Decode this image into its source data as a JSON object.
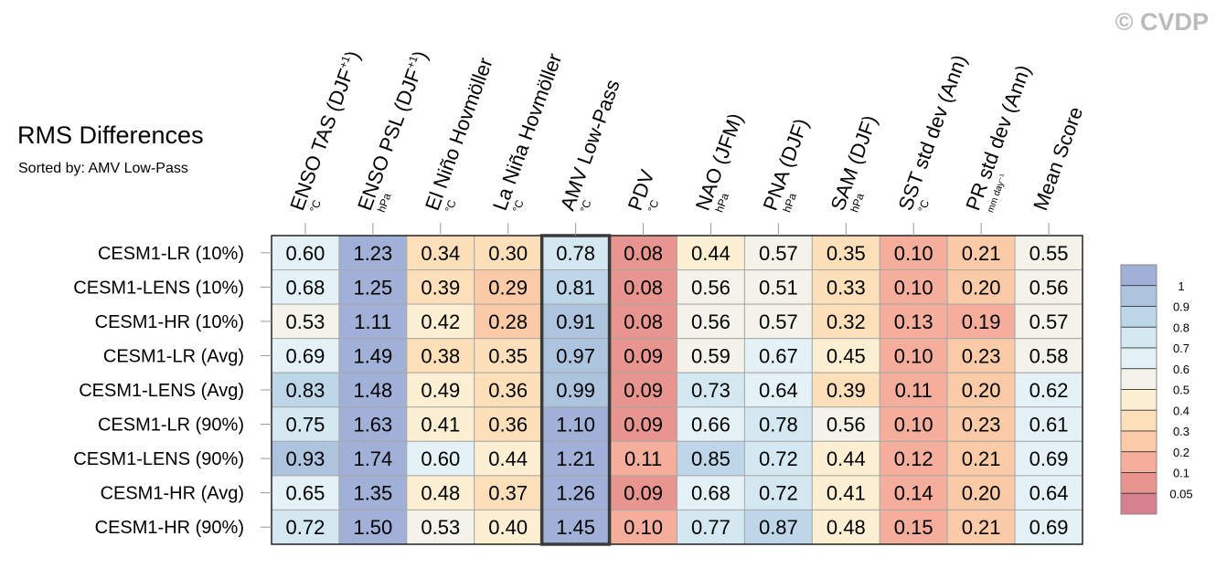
{
  "watermark": "© CVDP",
  "chart_data": {
    "type": "heatmap",
    "title": "RMS Differences",
    "subtitle": "Sorted by: AMV Low-Pass",
    "highlighted_column": "AMV Low-Pass",
    "columns": [
      {
        "name": "ENSO TAS (DJF",
        "sup": "+1",
        "close": ")",
        "unit": "°C"
      },
      {
        "name": "ENSO PSL (DJF",
        "sup": "+1",
        "close": ")",
        "unit": "hPa"
      },
      {
        "name": "El Niño Hovmöller",
        "sup": "",
        "close": "",
        "unit": "°C"
      },
      {
        "name": "La Niña Hovmöller",
        "sup": "",
        "close": "",
        "unit": "°C"
      },
      {
        "name": "AMV Low-Pass",
        "sup": "",
        "close": "",
        "unit": "°C"
      },
      {
        "name": "PDV",
        "sup": "",
        "close": "",
        "unit": "°C"
      },
      {
        "name": "NAO (JFM)",
        "sup": "",
        "close": "",
        "unit": "hPa"
      },
      {
        "name": "PNA (DJF)",
        "sup": "",
        "close": "",
        "unit": "hPa"
      },
      {
        "name": "SAM (DJF)",
        "sup": "",
        "close": "",
        "unit": "hPa"
      },
      {
        "name": "SST std dev (Ann)",
        "sup": "",
        "close": "",
        "unit": "°C"
      },
      {
        "name": "PR std dev (Ann)",
        "sup": "",
        "close": "",
        "unit": "mm day⁻¹"
      },
      {
        "name": "Mean Score",
        "sup": "",
        "close": "",
        "unit": ""
      }
    ],
    "rows": [
      {
        "name": "CESM1-LR (10%)",
        "values": [
          "0.60",
          "1.23",
          "0.34",
          "0.30",
          "0.78",
          "0.08",
          "0.44",
          "0.57",
          "0.35",
          "0.10",
          "0.21",
          "0.55"
        ]
      },
      {
        "name": "CESM1-LENS (10%)",
        "values": [
          "0.68",
          "1.25",
          "0.39",
          "0.29",
          "0.81",
          "0.08",
          "0.56",
          "0.51",
          "0.33",
          "0.10",
          "0.20",
          "0.56"
        ]
      },
      {
        "name": "CESM1-HR (10%)",
        "values": [
          "0.53",
          "1.11",
          "0.42",
          "0.28",
          "0.91",
          "0.08",
          "0.56",
          "0.57",
          "0.32",
          "0.13",
          "0.19",
          "0.57"
        ]
      },
      {
        "name": "CESM1-LR (Avg)",
        "values": [
          "0.69",
          "1.49",
          "0.38",
          "0.35",
          "0.97",
          "0.09",
          "0.59",
          "0.67",
          "0.45",
          "0.10",
          "0.23",
          "0.58"
        ]
      },
      {
        "name": "CESM1-LENS (Avg)",
        "values": [
          "0.83",
          "1.48",
          "0.49",
          "0.36",
          "0.99",
          "0.09",
          "0.73",
          "0.64",
          "0.39",
          "0.11",
          "0.20",
          "0.62"
        ]
      },
      {
        "name": "CESM1-LR (90%)",
        "values": [
          "0.75",
          "1.63",
          "0.41",
          "0.36",
          "1.10",
          "0.09",
          "0.66",
          "0.78",
          "0.56",
          "0.10",
          "0.23",
          "0.61"
        ]
      },
      {
        "name": "CESM1-LENS (90%)",
        "values": [
          "0.93",
          "1.74",
          "0.60",
          "0.44",
          "1.21",
          "0.11",
          "0.85",
          "0.72",
          "0.44",
          "0.12",
          "0.21",
          "0.69"
        ]
      },
      {
        "name": "CESM1-HR (Avg)",
        "values": [
          "0.65",
          "1.35",
          "0.48",
          "0.37",
          "1.26",
          "0.09",
          "0.68",
          "0.72",
          "0.41",
          "0.14",
          "0.20",
          "0.64"
        ]
      },
      {
        "name": "CESM1-HR (90%)",
        "values": [
          "0.72",
          "1.50",
          "0.53",
          "0.40",
          "1.45",
          "0.10",
          "0.77",
          "0.87",
          "0.48",
          "0.15",
          "0.21",
          "0.69"
        ]
      }
    ],
    "colorbar": {
      "levels": [
        "1",
        "0.9",
        "0.8",
        "0.7",
        "0.6",
        "0.5",
        "0.4",
        "0.3",
        "0.2",
        "0.1",
        "0.05"
      ],
      "thresholds": [
        1,
        0.9,
        0.8,
        0.7,
        0.6,
        0.5,
        0.4,
        0.3,
        0.2,
        0.1,
        0.05
      ],
      "colors": [
        "#a0b0d6",
        "#acc4de",
        "#bdd7e9",
        "#d3e8f1",
        "#e4f2f7",
        "#f3f3e9",
        "#fdefd2",
        "#fde0ba",
        "#fbcaa6",
        "#f5ae9b",
        "#e9958f",
        "#d6808f"
      ]
    }
  }
}
